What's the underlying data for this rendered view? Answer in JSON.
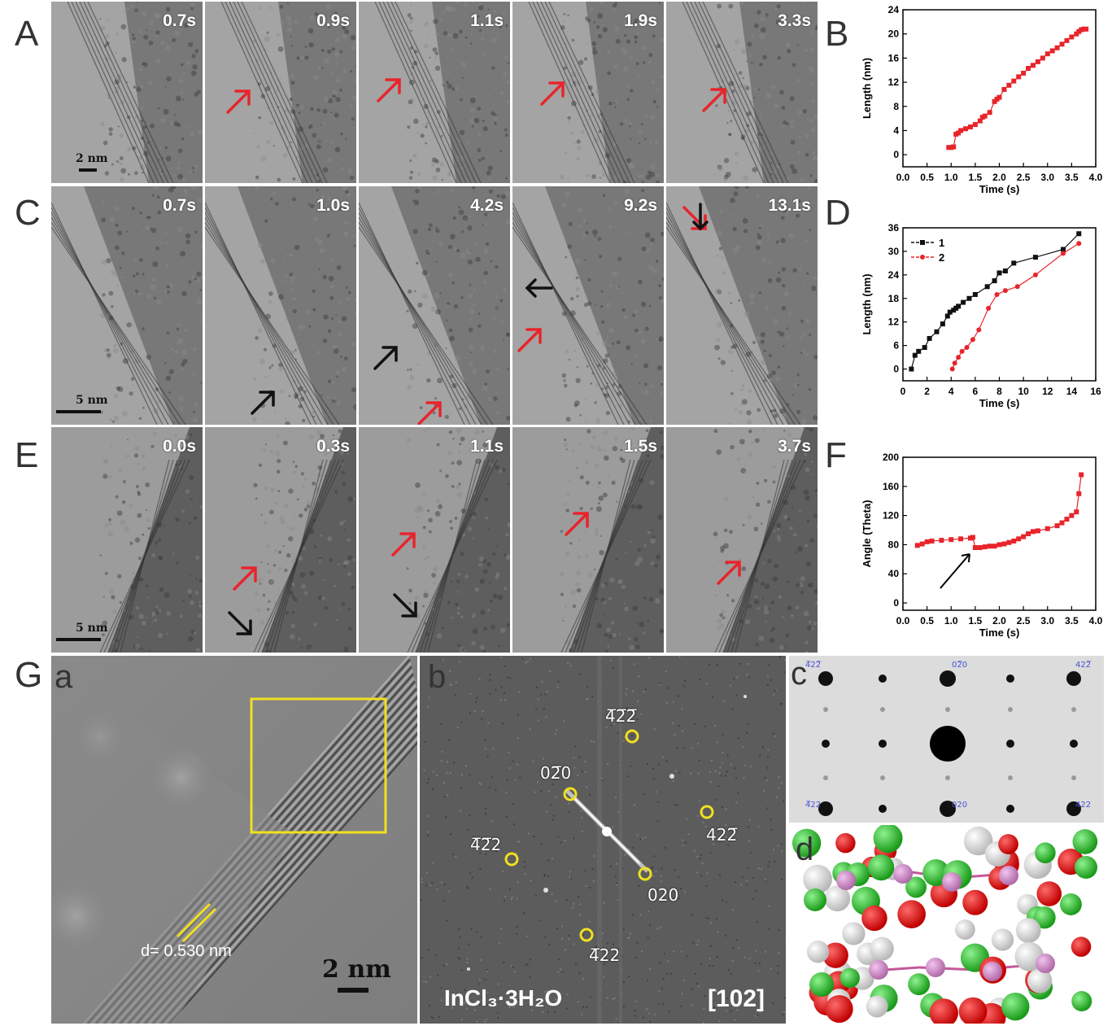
{
  "panel_labels": {
    "A": "A",
    "B": "B",
    "C": "C",
    "D": "D",
    "E": "E",
    "F": "F",
    "G": "G"
  },
  "row_A": {
    "times": [
      "0.7s",
      "0.9s",
      "1.1s",
      "1.9s",
      "3.3s"
    ],
    "scale": "2 nm"
  },
  "row_C": {
    "times": [
      "0.7s",
      "1.0s",
      "4.2s",
      "9.2s",
      "13.1s"
    ],
    "scale": "5 nm"
  },
  "row_E": {
    "times": [
      "0.0s",
      "0.3s",
      "1.1s",
      "1.5s",
      "3.7s"
    ],
    "scale": "5 nm"
  },
  "G": {
    "sub_a": "a",
    "sub_b": "b",
    "sub_c": "c",
    "sub_d": "d",
    "d_spacing": "d= 0.530 nm",
    "scale": "2 nm",
    "compound": "InCl₃·3H₂O",
    "zone_axis": "[102]",
    "fft_spots": [
      "4̅2̅2̅",
      "02̅0",
      "4̅2̅2",
      "422̅",
      "020",
      "4̅22"
    ],
    "sim_labels": [
      "4̅22̅",
      "02̅0",
      "422̅",
      "4̅22",
      "020",
      "422"
    ]
  },
  "colors": {
    "red": "#e8242b",
    "black": "#111111",
    "yellow": "#f0e020"
  },
  "chart_data": [
    {
      "id": "B",
      "type": "scatter",
      "title": "",
      "xlabel": "Time (s)",
      "ylabel": "Length (nm)",
      "xlim": [
        0.0,
        4.0
      ],
      "ylim": [
        -2,
        24
      ],
      "xticks": [
        "0.0",
        "0.5",
        "1.0",
        "1.5",
        "2.0",
        "2.5",
        "3.0",
        "3.5",
        "4.0"
      ],
      "yticks": [
        "0",
        "4",
        "8",
        "12",
        "16",
        "20",
        "24"
      ],
      "series": [
        {
          "name": "length",
          "color": "#e8242b",
          "x": [
            0.95,
            1.0,
            1.05,
            1.1,
            1.15,
            1.2,
            1.3,
            1.4,
            1.5,
            1.6,
            1.65,
            1.7,
            1.8,
            1.9,
            1.95,
            2.0,
            2.1,
            2.2,
            2.3,
            2.4,
            2.5,
            2.6,
            2.7,
            2.8,
            2.9,
            3.0,
            3.1,
            3.2,
            3.3,
            3.4,
            3.5,
            3.6,
            3.65,
            3.7,
            3.75,
            3.8
          ],
          "y": [
            1.2,
            1.2,
            1.3,
            3.4,
            3.6,
            4.0,
            4.3,
            4.6,
            5.0,
            5.6,
            6.2,
            6.4,
            7.0,
            8.8,
            9.2,
            9.5,
            10.8,
            11.5,
            12.2,
            12.9,
            13.5,
            14.3,
            14.8,
            15.4,
            16.0,
            16.7,
            17.2,
            17.7,
            18.3,
            18.9,
            19.5,
            20.0,
            20.4,
            20.7,
            20.8,
            20.8
          ]
        }
      ]
    },
    {
      "id": "D",
      "type": "line",
      "title": "",
      "xlabel": "Time (s)",
      "ylabel": "Length (nm)",
      "xlim": [
        0,
        16
      ],
      "ylim": [
        -3,
        36
      ],
      "xticks": [
        "0",
        "2",
        "4",
        "6",
        "8",
        "10",
        "12",
        "14",
        "16"
      ],
      "yticks": [
        "0",
        "6",
        "12",
        "18",
        "24",
        "30",
        "36"
      ],
      "legend": [
        "1",
        "2"
      ],
      "series": [
        {
          "name": "1",
          "color": "#111111",
          "marker": "square",
          "x": [
            0.7,
            1.0,
            1.3,
            1.8,
            2.2,
            2.8,
            3.3,
            3.7,
            3.9,
            4.2,
            4.4,
            4.6,
            5.0,
            5.5,
            6.0,
            7.0,
            7.6,
            8.0,
            8.5,
            9.2,
            11.0,
            13.3,
            14.6
          ],
          "y": [
            0,
            3.5,
            4.5,
            5.5,
            7.8,
            9.5,
            11.5,
            13.5,
            14.5,
            15.0,
            15.5,
            16.0,
            17.0,
            18.0,
            19.0,
            21.0,
            22.5,
            24.5,
            25.0,
            27.0,
            28.5,
            30.5,
            34.5
          ]
        },
        {
          "name": "2",
          "color": "#e8242b",
          "marker": "circle",
          "x": [
            4.1,
            4.3,
            4.6,
            4.9,
            5.3,
            5.8,
            6.3,
            7.1,
            7.8,
            8.5,
            9.5,
            11.0,
            13.3,
            14.6
          ],
          "y": [
            0,
            1.5,
            3.0,
            4.5,
            5.5,
            7.5,
            10.0,
            15.5,
            19.0,
            20.0,
            21.0,
            24.0,
            29.5,
            32.0
          ]
        }
      ]
    },
    {
      "id": "F",
      "type": "scatter",
      "title": "",
      "xlabel": "Time (s)",
      "ylabel": "Angle (Theta)",
      "xlim": [
        0.0,
        4.0
      ],
      "ylim": [
        -10,
        200
      ],
      "xticks": [
        "0.0",
        "0.5",
        "1.0",
        "1.5",
        "2.0",
        "2.5",
        "3.0",
        "3.5",
        "4.0"
      ],
      "yticks": [
        "0",
        "40",
        "80",
        "120",
        "160",
        "200"
      ],
      "annotation": {
        "x": 1.45,
        "y": 76,
        "text": "arrow"
      },
      "series": [
        {
          "name": "angle",
          "color": "#e8242b",
          "x": [
            0.3,
            0.4,
            0.5,
            0.6,
            0.8,
            1.0,
            1.2,
            1.4,
            1.45,
            1.5,
            1.6,
            1.7,
            1.8,
            1.9,
            2.0,
            2.1,
            2.2,
            2.3,
            2.4,
            2.5,
            2.6,
            2.7,
            2.8,
            3.0,
            3.2,
            3.3,
            3.4,
            3.5,
            3.6,
            3.65,
            3.7
          ],
          "y": [
            79,
            81,
            84,
            85,
            86,
            87,
            88,
            89,
            90,
            76,
            76,
            77,
            78,
            78,
            80,
            81,
            83,
            85,
            88,
            91,
            95,
            98,
            99,
            102,
            106,
            110,
            115,
            120,
            125,
            150,
            176
          ]
        }
      ]
    }
  ]
}
